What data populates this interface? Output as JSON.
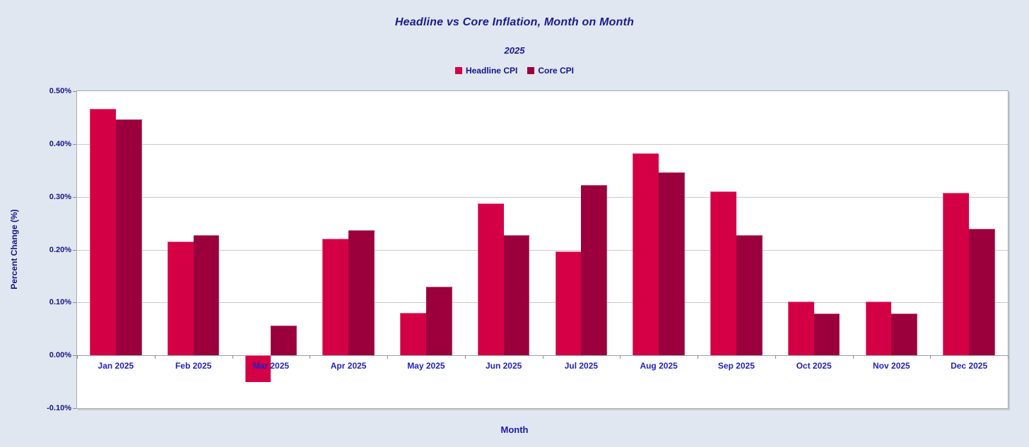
{
  "page": {
    "background_color": "#E1E7F0",
    "plot_background_color": "#FFFFFF",
    "gridline_color": "#C9C9C9",
    "axis_line_color": "#9E9E9E",
    "title_color": "#1A1A8E",
    "y_tick_color": "#14148C",
    "x_tick_color": "#2121C4"
  },
  "chart_data": {
    "type": "bar",
    "title": "Headline vs Core Inflation, Month on Month",
    "subtitle": "2025",
    "xlabel": "Month",
    "ylabel": "Percent Change (%)",
    "legend_position": "top",
    "grid": true,
    "ylim": [
      -0.1,
      0.5
    ],
    "yticks": [
      0.5,
      0.4,
      0.3,
      0.2,
      0.1,
      0.0,
      -0.1
    ],
    "ytick_labels": [
      "0.50%",
      "0.40%",
      "0.30%",
      "0.20%",
      "0.10%",
      "0.00%",
      "-0.10%"
    ],
    "categories": [
      "Jan 2025",
      "Feb 2025",
      "Mar 2025",
      "Apr 2025",
      "May 2025",
      "Jun 2025",
      "Jul 2025",
      "Aug 2025",
      "Sep 2025",
      "Oct 2025",
      "Nov 2025",
      "Dec 2025"
    ],
    "series": [
      {
        "name": "Headline CPI",
        "color": "#D30045",
        "values": [
          0.467,
          0.216,
          -0.05,
          0.221,
          0.081,
          0.287,
          0.197,
          0.383,
          0.31,
          0.102,
          0.102,
          0.307
        ]
      },
      {
        "name": "Core CPI",
        "color": "#9B003C",
        "values": [
          0.446,
          0.227,
          0.057,
          0.237,
          0.13,
          0.228,
          0.322,
          0.346,
          0.227,
          0.079,
          0.079,
          0.239
        ]
      }
    ]
  }
}
